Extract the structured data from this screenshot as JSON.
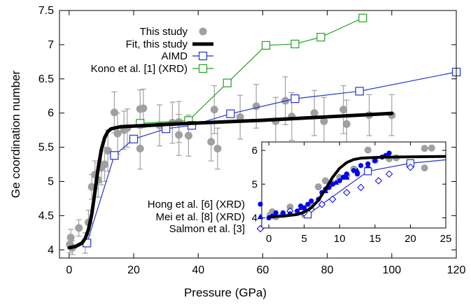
{
  "chart_data": [
    {
      "type": "scatter",
      "xlabel": "Pressure (GPa)",
      "ylabel": "Ge coordination number",
      "xlim": [
        -3,
        120
      ],
      "ylim": [
        3.88,
        7.5
      ],
      "xticks": [
        0,
        20,
        40,
        60,
        80,
        100,
        120
      ],
      "xtick_labels": [
        "0",
        "20",
        "40",
        "60",
        "80",
        "100",
        "120"
      ],
      "yticks": [
        4,
        4.5,
        5,
        5.5,
        6,
        6.5,
        7,
        7.5
      ],
      "ytick_labels": [
        "4",
        "4.5",
        "5",
        "5.5",
        "6",
        "6.5",
        "7",
        "7.5"
      ],
      "legend_position": "top-right",
      "series": [
        {
          "name": "This study",
          "kind": "points-with-errorbars",
          "color": "#a0a0a0",
          "points": [
            {
              "x": 0.2,
              "y": 4.08,
              "err": 0.12
            },
            {
              "x": 0.5,
              "y": 4.18,
              "err": 0.12
            },
            {
              "x": 1.0,
              "y": 4.03,
              "err": 0.1
            },
            {
              "x": 3.0,
              "y": 4.32,
              "err": 0.12
            },
            {
              "x": 5.0,
              "y": 4.1,
              "err": 0.15
            },
            {
              "x": 6.0,
              "y": 4.4,
              "err": 0.18
            },
            {
              "x": 7.0,
              "y": 4.92,
              "err": 0.18
            },
            {
              "x": 8.0,
              "y": 5.1,
              "err": 0.2
            },
            {
              "x": 9.0,
              "y": 5.02,
              "err": 0.25
            },
            {
              "x": 10.0,
              "y": 5.2,
              "err": 0.25
            },
            {
              "x": 11.0,
              "y": 5.25,
              "err": 0.25
            },
            {
              "x": 12.0,
              "y": 5.45,
              "err": 0.3
            },
            {
              "x": 14.0,
              "y": 6.01,
              "err": 0.3
            },
            {
              "x": 15.0,
              "y": 5.7,
              "err": 0.3
            },
            {
              "x": 17.0,
              "y": 5.75,
              "err": 0.28
            },
            {
              "x": 18.0,
              "y": 5.78,
              "err": 0.28
            },
            {
              "x": 22.0,
              "y": 5.48,
              "err": 0.3
            },
            {
              "x": 22.0,
              "y": 6.06,
              "err": 0.28
            },
            {
              "x": 23.0,
              "y": 6.07,
              "err": 0.28
            },
            {
              "x": 28.0,
              "y": 5.82,
              "err": 0.3
            },
            {
              "x": 32.0,
              "y": 5.86,
              "err": 0.3
            },
            {
              "x": 34.0,
              "y": 5.68,
              "err": 0.3
            },
            {
              "x": 34.0,
              "y": 5.87,
              "err": 0.3
            },
            {
              "x": 37.0,
              "y": 5.67,
              "err": 0.3
            },
            {
              "x": 44.0,
              "y": 5.58,
              "err": 0.28
            },
            {
              "x": 45.0,
              "y": 6.05,
              "err": 0.35
            },
            {
              "x": 46.0,
              "y": 5.48,
              "err": 0.3
            },
            {
              "x": 53.0,
              "y": 5.94,
              "err": 0.32
            },
            {
              "x": 58.0,
              "y": 6.1,
              "err": 0.32
            },
            {
              "x": 64.0,
              "y": 5.88,
              "err": 0.35
            },
            {
              "x": 67.0,
              "y": 6.18,
              "err": 0.35
            },
            {
              "x": 69.0,
              "y": 5.95,
              "err": 0.35
            },
            {
              "x": 76.0,
              "y": 6.0,
              "err": 0.33
            },
            {
              "x": 79.0,
              "y": 5.88,
              "err": 0.35
            },
            {
              "x": 85.0,
              "y": 6.05,
              "err": 0.35
            },
            {
              "x": 86.0,
              "y": 5.84,
              "err": 0.35
            },
            {
              "x": 93.0,
              "y": 5.97,
              "err": 0.3
            },
            {
              "x": 100.0,
              "y": 5.97,
              "err": 0.3
            }
          ]
        },
        {
          "name": "Fit, this study",
          "kind": "line",
          "color": "#000000",
          "x": [
            0,
            2,
            4,
            5,
            6,
            7,
            8,
            9,
            10,
            11,
            12,
            13,
            14,
            15,
            16,
            18,
            20,
            25,
            30,
            40,
            50,
            60,
            70,
            80,
            90,
            100
          ],
          "y": [
            4.03,
            4.05,
            4.1,
            4.17,
            4.3,
            4.52,
            4.85,
            5.2,
            5.47,
            5.64,
            5.73,
            5.77,
            5.78,
            5.79,
            5.8,
            5.805,
            5.81,
            5.82,
            5.835,
            5.855,
            5.875,
            5.895,
            5.92,
            5.945,
            5.97,
            5.995
          ]
        },
        {
          "name": "AIMD",
          "kind": "line-open-square",
          "color": "#2233cc",
          "x": [
            5.5,
            14,
            20,
            30,
            38,
            50,
            70,
            90,
            120
          ],
          "y": [
            4.1,
            5.38,
            5.62,
            5.77,
            5.82,
            5.99,
            6.21,
            6.32,
            6.6
          ]
        },
        {
          "name": "Kono et al. [1] (XRD)",
          "kind": "line-open-square",
          "color": "#22a022",
          "x": [
            22,
            37,
            49,
            61,
            70,
            78,
            91
          ],
          "y": [
            5.85,
            5.89,
            6.44,
            6.99,
            7.01,
            7.11,
            7.39
          ]
        }
      ]
    },
    {
      "type": "scatter",
      "inset": true,
      "xlim": [
        -1,
        25
      ],
      "ylim": [
        3.7,
        6.25
      ],
      "xticks": [
        0,
        5,
        10,
        15,
        20,
        25
      ],
      "xtick_labels": [
        "0",
        "5",
        "10",
        "15",
        "20",
        "25"
      ],
      "yticks": [
        4,
        5,
        6
      ],
      "ytick_labels": [
        "4",
        "5",
        "6"
      ],
      "legend_position": "left",
      "series": [
        {
          "name": "This study",
          "kind": "points",
          "color": "#a0a0a0",
          "x": [
            0.2,
            0.5,
            1.0,
            3.0,
            5.0,
            6.0,
            7.0,
            8.0,
            9.0,
            10.0,
            11.0,
            12.0,
            14.0,
            15.0,
            17.0,
            18.0,
            22.0,
            22.0,
            23.0
          ],
          "y": [
            4.08,
            4.18,
            4.03,
            4.32,
            4.1,
            4.4,
            4.92,
            5.1,
            5.02,
            5.2,
            5.25,
            5.45,
            6.01,
            5.7,
            5.75,
            5.78,
            5.48,
            6.06,
            6.07
          ]
        },
        {
          "name": "Fit, this study",
          "kind": "line",
          "color": "#000000",
          "x": [
            0,
            2,
            4,
            5,
            6,
            7,
            8,
            9,
            10,
            11,
            12,
            13,
            14,
            15,
            16,
            18,
            20,
            25
          ],
          "y": [
            4.03,
            4.05,
            4.1,
            4.17,
            4.3,
            4.52,
            4.85,
            5.2,
            5.47,
            5.64,
            5.73,
            5.77,
            5.78,
            5.79,
            5.8,
            5.805,
            5.81,
            5.82
          ]
        },
        {
          "name": "AIMD",
          "kind": "line-open-square",
          "color": "#2233cc",
          "x": [
            5.5,
            14,
            20,
            25
          ],
          "y": [
            4.1,
            5.38,
            5.62,
            5.72
          ]
        },
        {
          "name": "Hong et al. [6] (XRD)",
          "kind": "points-filled-circle",
          "color": "#0000ee",
          "x": [
            0,
            0.5,
            1,
            2,
            3,
            4,
            4.5,
            5,
            5.5,
            6,
            7,
            7.5,
            8,
            8.5,
            9,
            10,
            10.5,
            11,
            12,
            12.5,
            13,
            14,
            15,
            16,
            16.5,
            17
          ],
          "y": [
            4.0,
            4.05,
            4.15,
            4.15,
            4.12,
            4.2,
            4.35,
            4.3,
            4.4,
            4.5,
            4.55,
            4.75,
            4.85,
            4.9,
            5.0,
            5.1,
            5.2,
            5.3,
            5.4,
            5.3,
            5.55,
            5.6,
            5.7,
            5.8,
            5.85,
            5.92
          ]
        },
        {
          "name": "Mei et al.  [8] (XRD)",
          "kind": "points-filled-triangle",
          "color": "#0000ee",
          "x": [
            4.5,
            8,
            9.5,
            11,
            12.5,
            14
          ],
          "y": [
            4.3,
            4.8,
            5.05,
            5.2,
            5.4,
            5.55
          ]
        },
        {
          "name": "Salmon et al. [3]",
          "kind": "points-open-diamond",
          "color": "#0000ee",
          "x": [
            2,
            3,
            5,
            6,
            7.5,
            9,
            11,
            13,
            15.5,
            17,
            20
          ],
          "y": [
            4.1,
            4.2,
            4.15,
            4.25,
            4.4,
            4.55,
            4.75,
            4.9,
            5.1,
            5.3,
            5.5
          ]
        }
      ]
    }
  ]
}
